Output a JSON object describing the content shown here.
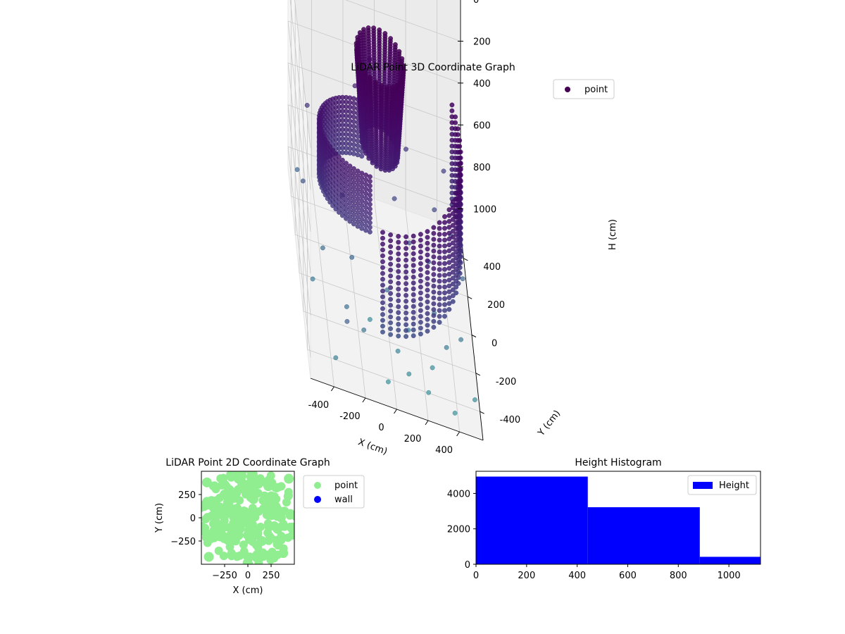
{
  "chart_data": [
    {
      "type": "scatter",
      "dimensions": 3,
      "title": "LiDAR Point 3D Coordinate Graph",
      "xlabel": "X (cm)",
      "ylabel": "Y (cm)",
      "zlabel": "H (cm)",
      "xlim": [
        -550,
        550
      ],
      "ylim": [
        -550,
        550
      ],
      "zlim": [
        1100,
        0
      ],
      "z_axis_inverted": true,
      "xticks": [
        "-400",
        "-200",
        "0",
        "200",
        "400"
      ],
      "yticks": [
        "-400",
        "-200",
        "0",
        "200",
        "400"
      ],
      "zticks": [
        "0",
        "200",
        "400",
        "600",
        "800",
        "1000"
      ],
      "colormap": "viridis",
      "legend": {
        "entries": [
          {
            "label": "point",
            "color": "#440154"
          }
        ],
        "position": "upper right"
      },
      "grid": true,
      "structures": [
        {
          "kind": "vertical cylinder",
          "center": [
            -20,
            120
          ],
          "radius": 150,
          "h_range": [
            30,
            470
          ]
        },
        {
          "kind": "arc of vertical column rows",
          "radius": 500,
          "h_range": [
            330,
            820
          ]
        },
        {
          "kind": "dense ring near origin",
          "radius": 330,
          "h_range": [
            380,
            650
          ]
        }
      ],
      "scattered_points": [
        [
          -520,
          330,
          900
        ],
        [
          -450,
          380,
          620
        ],
        [
          -380,
          -480,
          1020
        ],
        [
          -300,
          -420,
          880
        ],
        [
          -260,
          120,
          760
        ],
        [
          -180,
          -320,
          980
        ],
        [
          -120,
          -160,
          1060
        ],
        [
          -60,
          320,
          240
        ],
        [
          -40,
          -440,
          1080
        ],
        [
          40,
          -300,
          1040
        ],
        [
          120,
          -200,
          1010
        ],
        [
          160,
          60,
          820
        ],
        [
          220,
          -420,
          1080
        ],
        [
          260,
          -300,
          1060
        ],
        [
          300,
          -80,
          990
        ],
        [
          340,
          220,
          760
        ],
        [
          380,
          -480,
          1080
        ],
        [
          420,
          380,
          700
        ],
        [
          460,
          -160,
          1000
        ],
        [
          500,
          60,
          900
        ],
        [
          520,
          -380,
          1070
        ],
        [
          -480,
          -120,
          1000
        ],
        [
          -400,
          0,
          940
        ],
        [
          -320,
          260,
          720
        ],
        [
          -220,
          -40,
          900
        ],
        [
          -140,
          420,
          480
        ],
        [
          0,
          -80,
          960
        ],
        [
          80,
          180,
          740
        ],
        [
          180,
          380,
          660
        ],
        [
          280,
          40,
          860
        ],
        [
          360,
          -220,
          1010
        ],
        [
          440,
          180,
          820
        ],
        [
          -500,
          200,
          830
        ],
        [
          -280,
          -250,
          960
        ],
        [
          20,
          420,
          560
        ],
        [
          100,
          -380,
          1060
        ]
      ]
    },
    {
      "type": "scatter",
      "title": "LiDAR Point 2D Coordinate Graph",
      "xlabel": "X (cm)",
      "ylabel": "Y (cm)",
      "xlim": [
        -500,
        500
      ],
      "ylim": [
        -500,
        500
      ],
      "xticks": [
        "−250",
        "0",
        "250"
      ],
      "yticks": [
        "250",
        "0",
        "−250"
      ],
      "legend": {
        "position": "outside right",
        "entries": [
          {
            "label": "point",
            "color": "#90ee90"
          },
          {
            "label": "wall",
            "color": "#0000ff"
          }
        ]
      },
      "series": [
        {
          "name": "point",
          "color": "#90ee90",
          "points": [
            [
              -80,
              60
            ],
            [
              -200,
              300
            ],
            [
              150,
              -250
            ],
            [
              300,
              120
            ],
            [
              -300,
              -200
            ],
            [
              0,
              -50
            ],
            [
              60,
              200
            ],
            [
              -150,
              -60
            ],
            [
              220,
              340
            ],
            [
              -350,
              80
            ],
            [
              380,
              -380
            ],
            [
              -420,
              -420
            ],
            [
              440,
              420
            ],
            [
              -440,
              380
            ],
            [
              100,
              -400
            ],
            [
              -100,
              420
            ],
            [
              320,
              -120
            ],
            [
              -250,
              250
            ]
          ]
        },
        {
          "name": "wall",
          "color": "#0000ff",
          "points": []
        }
      ]
    },
    {
      "type": "bar",
      "subtype": "histogram",
      "title": "Height Histogram",
      "xlim": [
        0,
        1125
      ],
      "ylim": [
        0,
        5250
      ],
      "xticks": [
        "0",
        "200",
        "400",
        "600",
        "800",
        "1000"
      ],
      "yticks": [
        "0",
        "2000",
        "4000"
      ],
      "legend": {
        "entries": [
          {
            "label": "Height",
            "color": "#0000ff"
          }
        ],
        "position": "upper right"
      },
      "bins": [
        {
          "x0": 0,
          "x1": 442,
          "count": 4950
        },
        {
          "x0": 442,
          "x1": 885,
          "count": 3220
        },
        {
          "x0": 885,
          "x1": 1125,
          "count": 420
        }
      ]
    }
  ]
}
